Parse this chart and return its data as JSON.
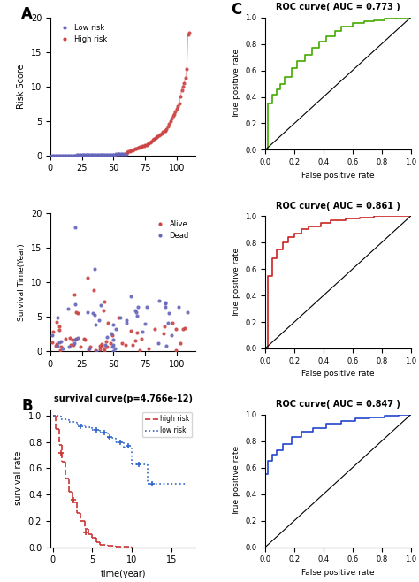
{
  "panel_A_label": "A",
  "panel_B_label": "B",
  "panel_C_label": "C",
  "risk_score_ylabel": "Risk Score",
  "risk_score_ylim": [
    0,
    20
  ],
  "risk_score_xlim": [
    0,
    115
  ],
  "risk_score_xticks": [
    0,
    25,
    50,
    75,
    100
  ],
  "risk_score_yticks": [
    0,
    5,
    10,
    15,
    20
  ],
  "low_risk_color": "#6666bb",
  "high_risk_color": "#cc4444",
  "n_low": 60,
  "n_high": 50,
  "survival_ylabel": "Survival Time(Year)",
  "survival_ylim": [
    0,
    20
  ],
  "survival_yticks": [
    0,
    5,
    10,
    15,
    20
  ],
  "alive_color": "#cc4444",
  "dead_color": "#6666bb",
  "km_title": "survival curve(p=4.766e-12)",
  "km_ylabel": "survival rate",
  "km_xlabel": "time(year)",
  "km_ylim": [
    0,
    1.05
  ],
  "km_xlim": [
    -0.3,
    18
  ],
  "km_xticks": [
    0,
    5,
    10,
    15
  ],
  "km_yticks": [
    0.0,
    0.2,
    0.4,
    0.6,
    0.8,
    1.0
  ],
  "km_high_color": "#cc3333",
  "km_low_color": "#3366cc",
  "roc1_title": "ROC curve( AUC = 0.773 )",
  "roc1_color": "#44aa00",
  "roc2_title": "ROC curve( AUC = 0.861 )",
  "roc2_color": "#cc2222",
  "roc3_title": "ROC curve( AUC = 0.847 )",
  "roc3_color": "#2244cc",
  "roc_xlabel": "False positive rate",
  "roc_ylabel": "True positive rate",
  "roc_xticks": [
    0.0,
    0.2,
    0.4,
    0.6,
    0.8,
    1.0
  ],
  "roc_yticks": [
    0.0,
    0.2,
    0.4,
    0.6,
    0.8,
    1.0
  ]
}
